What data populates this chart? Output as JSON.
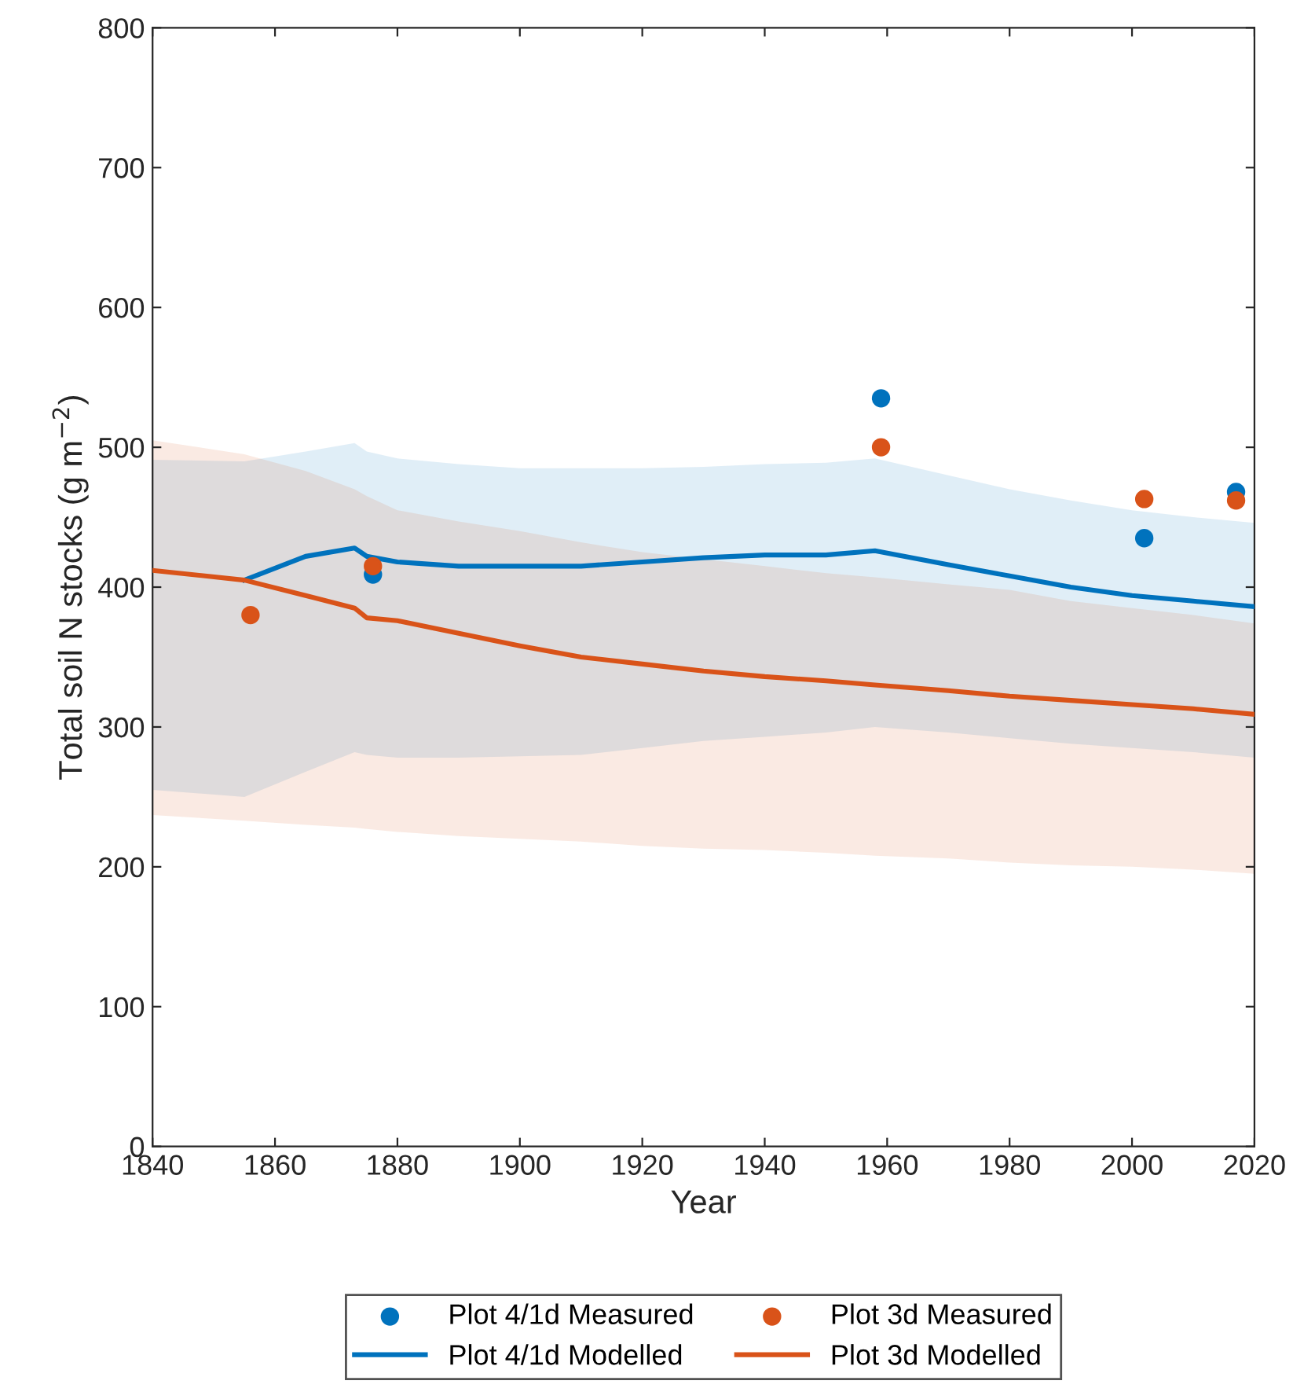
{
  "chart_data": {
    "type": "line",
    "xlabel": "Year",
    "ylabel": "Total soil N stocks (g m$^{−2}$)",
    "xlim": [
      1840,
      2020
    ],
    "xticks": [
      1840,
      1860,
      1880,
      1900,
      1920,
      1940,
      1960,
      1980,
      2000,
      2020
    ],
    "ylim": [
      0,
      800
    ],
    "yticks": [
      0,
      100,
      200,
      300,
      400,
      500,
      600,
      700,
      800
    ],
    "grid": false,
    "legend": "bottom",
    "series": [
      {
        "name": "Plot 4/1d Measured",
        "type": "scatter",
        "marker": "circle",
        "color": "#0072bd",
        "x": [
          1876,
          1959,
          2002,
          2017
        ],
        "values": [
          409,
          535,
          435,
          468
        ]
      },
      {
        "name": "Plot 3d Measured",
        "type": "scatter",
        "marker": "circle",
        "color": "#d95319",
        "x": [
          1856,
          1876,
          1959,
          2002,
          2017
        ],
        "values": [
          380,
          415,
          500,
          463,
          462
        ]
      },
      {
        "name": "Plot 4/1d Modelled",
        "color": "#0072bd",
        "x": [
          1840,
          1855,
          1865,
          1873,
          1875,
          1880,
          1890,
          1900,
          1910,
          1920,
          1930,
          1940,
          1950,
          1958,
          1970,
          1980,
          1990,
          2000,
          2010,
          2020
        ],
        "values": [
          null,
          405,
          422,
          428,
          422,
          418,
          415,
          415,
          415,
          418,
          421,
          423,
          423,
          426,
          416,
          408,
          400,
          394,
          390,
          386
        ],
        "upper": [
          491,
          490,
          497,
          503,
          497,
          492,
          488,
          485,
          485,
          485,
          486,
          488,
          489,
          492,
          480,
          470,
          462,
          455,
          450,
          446
        ],
        "lower": [
          255,
          250,
          268,
          282,
          280,
          278,
          278,
          279,
          280,
          285,
          290,
          293,
          296,
          300,
          296,
          292,
          288,
          285,
          282,
          278
        ]
      },
      {
        "name": "Plot 3d Modelled",
        "color": "#d95319",
        "x": [
          1840,
          1855,
          1865,
          1873,
          1875,
          1880,
          1890,
          1900,
          1910,
          1920,
          1930,
          1940,
          1950,
          1958,
          1970,
          1980,
          1990,
          2000,
          2010,
          2020
        ],
        "values": [
          412,
          405,
          394,
          385,
          378,
          376,
          367,
          358,
          350,
          345,
          340,
          336,
          333,
          330,
          326,
          322,
          319,
          316,
          313,
          309
        ],
        "upper": [
          505,
          495,
          483,
          470,
          465,
          455,
          447,
          440,
          432,
          425,
          420,
          415,
          410,
          407,
          402,
          398,
          390,
          385,
          380,
          374
        ],
        "lower": [
          237,
          233,
          230,
          228,
          227,
          225,
          222,
          220,
          218,
          215,
          213,
          212,
          210,
          208,
          206,
          203,
          201,
          200,
          198,
          195
        ]
      }
    ]
  }
}
